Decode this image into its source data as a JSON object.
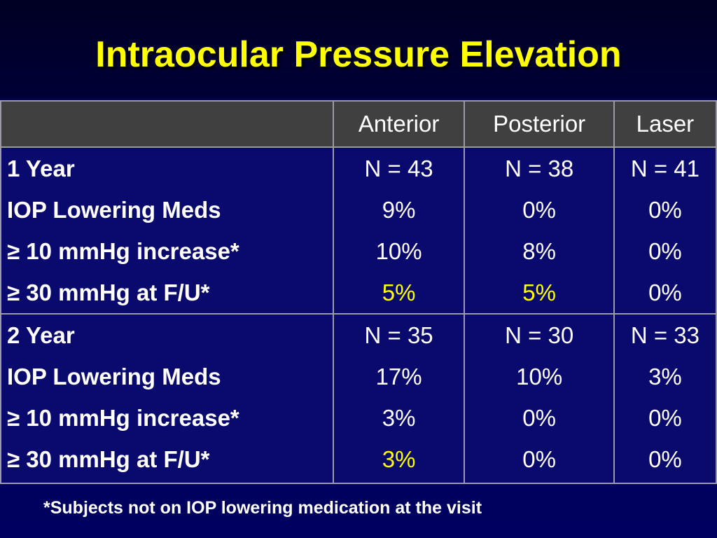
{
  "title": "Intraocular Pressure Elevation",
  "table": {
    "headers": [
      "",
      "Anterior",
      "Posterior",
      "Laser"
    ],
    "groups": [
      {
        "labels": [
          "1 Year",
          "IOP Lowering Meds",
          "≥ 10 mmHg increase*",
          "≥ 30 mmHg at F/U*"
        ],
        "anterior": [
          "N = 43",
          "9%",
          "10%",
          "5%"
        ],
        "posterior": [
          "N = 38",
          "0%",
          "8%",
          "5%"
        ],
        "laser": [
          "N = 41",
          "0%",
          "0%",
          "0%"
        ]
      },
      {
        "labels": [
          "2 Year",
          "IOP Lowering Meds",
          "≥ 10 mmHg increase*",
          "≥ 30 mmHg at F/U*"
        ],
        "anterior": [
          "N = 35",
          "17%",
          "3%",
          "3%"
        ],
        "posterior": [
          "N = 30",
          "10%",
          "0%",
          "0%"
        ],
        "laser": [
          "N = 33",
          "3%",
          "0%",
          "0%"
        ]
      }
    ]
  },
  "highlight_color": "#ffff00",
  "footnote": "*Subjects not on IOP lowering medication at the visit"
}
